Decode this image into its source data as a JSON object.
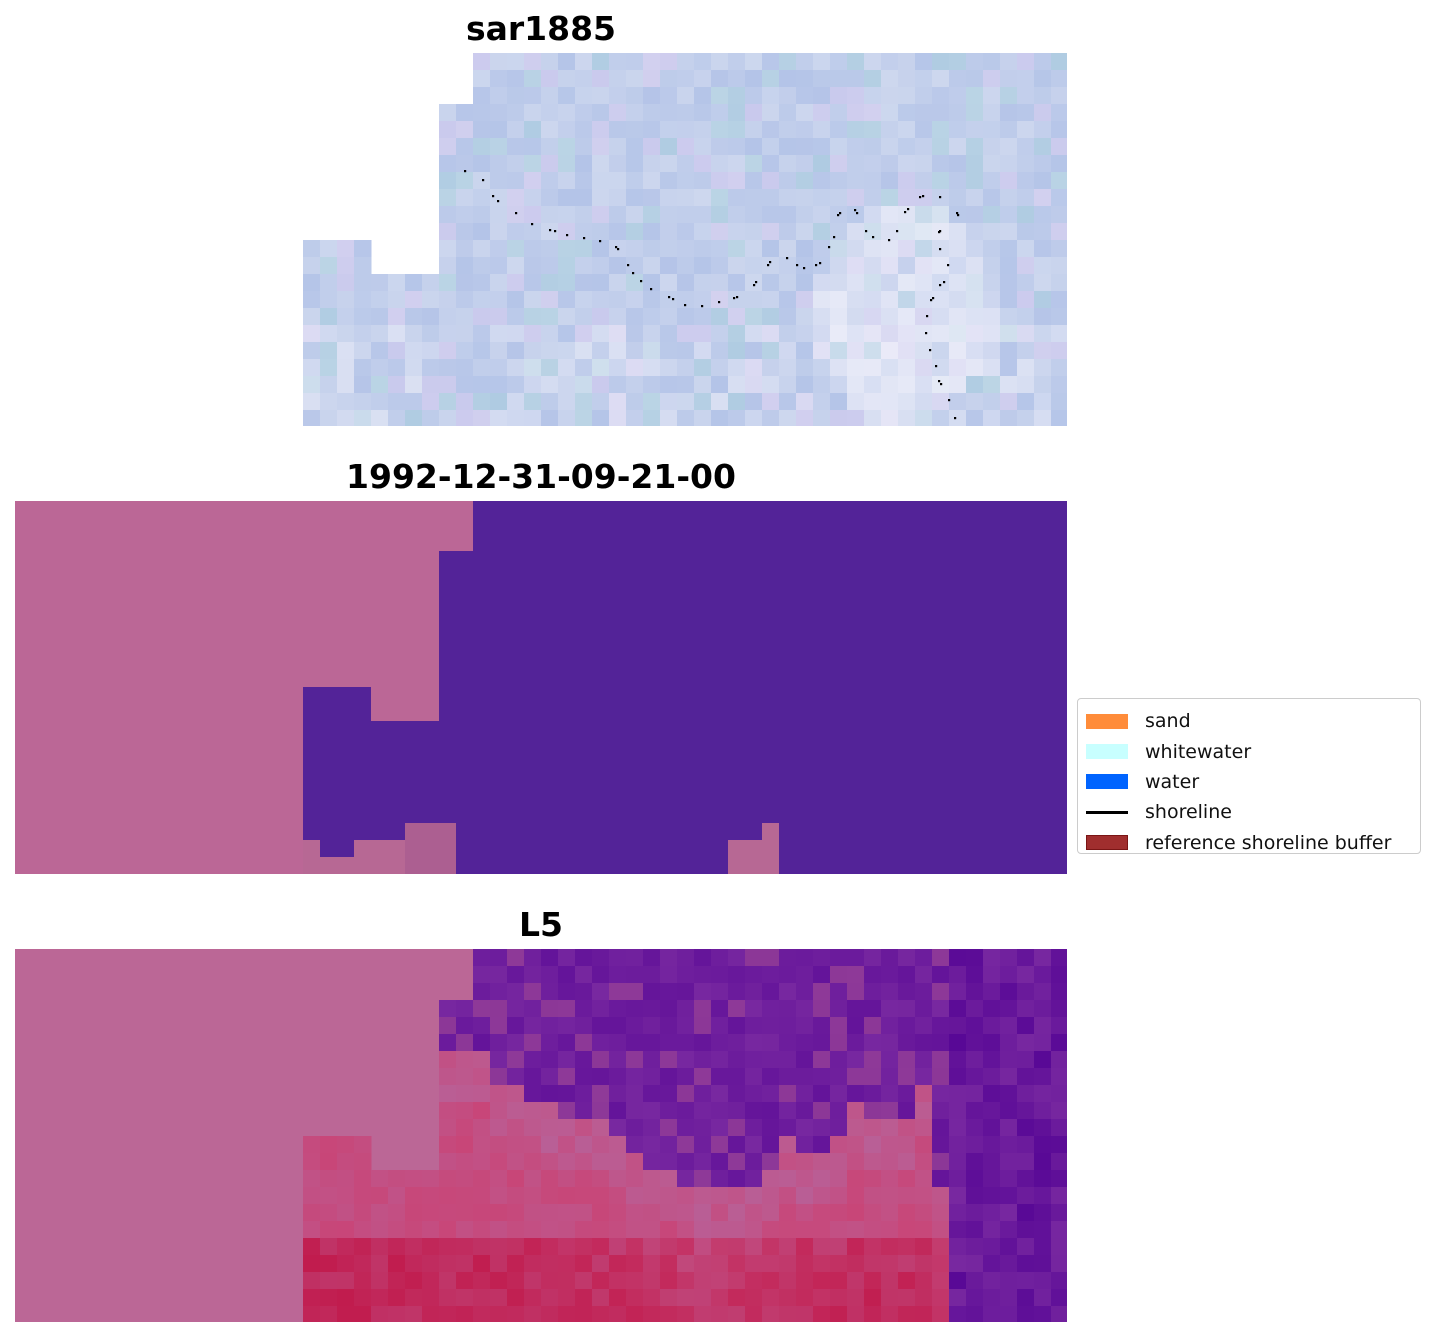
{
  "panels": [
    {
      "title": "sar1885"
    },
    {
      "title": "1992-12-31-09-21-00"
    },
    {
      "title": "L5"
    }
  ],
  "legend": {
    "items": [
      {
        "label": "sand",
        "kind": "patch",
        "color": "#ff8c3a",
        "edge": "#ff8c3a"
      },
      {
        "label": "whitewater",
        "kind": "patch",
        "color": "#c8ffff",
        "edge": "#c8ffff"
      },
      {
        "label": "water",
        "kind": "patch",
        "color": "#0064ff",
        "edge": "#0064ff"
      },
      {
        "label": "shoreline",
        "kind": "line",
        "color": "#000000"
      },
      {
        "label": "reference shoreline buffer",
        "kind": "patch",
        "color": "#a02e2e",
        "edge": "#7a1515"
      }
    ]
  },
  "colors": {
    "nodata_pink": "#bb6796",
    "classified_purple": "#532398",
    "sar_base": "#b4c3e6",
    "shoreline_dots": "#000000"
  }
}
